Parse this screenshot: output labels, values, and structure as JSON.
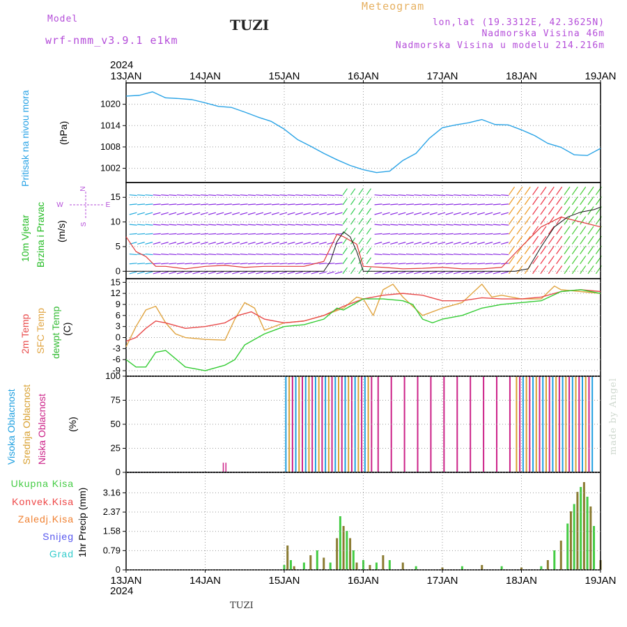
{
  "header": {
    "model_label": "Model",
    "model_name": "wrf-nmm_v3.9.1 e1km",
    "station": "TUZI",
    "meteogram": "Meteogram",
    "lonlat": "lon,lat (19.3312E, 42.3625N)",
    "elevation": "Nadmorska Visina 46m",
    "model_elevation": "Nadmorska Visina u modelu 214.216m"
  },
  "footer": {
    "station": "TUZI",
    "year_top": "2024",
    "year_bottom": "2024"
  },
  "watermark": "made by Angel",
  "colors": {
    "pressure": "#29a3e6",
    "wind_speed": "#e03a3a",
    "wind_gust": "#111111",
    "temp_2m": "#e84a4a",
    "temp_sfc": "#e0a440",
    "dewpoint": "#33cc33",
    "cloud_high": "#1fa0e0",
    "cloud_mid": "#d8a030",
    "cloud_low": "#cc2288",
    "precip_total": "#44cc44",
    "precip_conv": "#ee4444",
    "precip_frozen": "#f08030",
    "snow": "#5555ee",
    "grad": "#33cccc",
    "wind_calm": "#8a2be2"
  },
  "days": [
    "13JAN",
    "14JAN",
    "15JAN",
    "16JAN",
    "17JAN",
    "18JAN",
    "19JAN"
  ],
  "panels": {
    "pressure": {
      "label": "Pritisak na nivou mora",
      "unit": "(hPa)"
    },
    "wind": {
      "label1": "10m Vjetar",
      "label2": "Brzina i Pravac",
      "unit": "(m/s)",
      "compass": {
        "n": "N",
        "s": "S",
        "e": "E",
        "w": "W"
      }
    },
    "temp": {
      "label1": "2m Temp",
      "label2": "SFC Temp",
      "label3": "dewpt Temp",
      "unit": "(C)"
    },
    "cloud": {
      "label1": "Visoka Oblacnost",
      "label2": "Srednja Oblacnost",
      "label3": "Niska Oblacnost",
      "unit": "(%)"
    },
    "precip": {
      "unit": "1hr Precip (mm)",
      "legend": [
        "Ukupna Kisa",
        "Konvek.Kisa",
        "Zaledj.Kisa",
        "Snijeg",
        "Grad"
      ]
    }
  },
  "chart_data": [
    {
      "type": "line",
      "name": "pressure",
      "ylim": [
        998,
        1026
      ],
      "yticks": [
        "1002",
        "1008",
        "1014",
        "1020"
      ],
      "x": [
        0,
        4,
        8,
        12,
        16,
        20,
        24,
        28,
        32,
        36,
        40,
        44,
        48,
        52,
        56,
        60,
        64,
        68,
        72,
        76,
        80,
        84,
        88,
        92,
        96,
        100,
        104,
        108,
        112,
        116,
        120,
        124,
        128,
        132,
        136,
        140,
        144
      ],
      "y": [
        1022.3,
        1022.5,
        1023.5,
        1021.8,
        1021.6,
        1021.3,
        1020.4,
        1019.4,
        1019.1,
        1017.8,
        1016.4,
        1015.2,
        1013.0,
        1010.1,
        1008.2,
        1006.2,
        1004.4,
        1002.8,
        1001.6,
        1000.8,
        1001.2,
        1004.2,
        1006.2,
        1010.4,
        1013.4,
        1014.2,
        1014.8,
        1015.7,
        1014.3,
        1014.2,
        1012.8,
        1011.2,
        1009.0,
        1007.9,
        1005.8,
        1005.6,
        1007.6
      ]
    },
    {
      "type": "line",
      "name": "wind",
      "ylim": [
        -1.5,
        18
      ],
      "yticks": [
        "0",
        "5",
        "10",
        "15"
      ],
      "series": [
        {
          "name": "speed",
          "x": [
            0,
            3,
            6,
            9,
            12,
            18,
            24,
            30,
            36,
            42,
            48,
            54,
            60,
            64,
            66,
            70,
            72,
            78,
            84,
            90,
            96,
            102,
            108,
            114,
            120,
            126,
            132,
            138,
            144
          ],
          "y": [
            7,
            4,
            3,
            1,
            1,
            0.5,
            1,
            1.2,
            0.8,
            1,
            1,
            1,
            2,
            7.5,
            7,
            5.5,
            1,
            0.8,
            0.5,
            0.6,
            0.8,
            0.5,
            0.5,
            0.8,
            5,
            9,
            11,
            10,
            9
          ]
        },
        {
          "name": "gust",
          "x": [
            0,
            12,
            24,
            36,
            48,
            60,
            62,
            64,
            66,
            68,
            70,
            72,
            84,
            96,
            108,
            114,
            118,
            122,
            126,
            130,
            134,
            138,
            142,
            144
          ],
          "y": [
            0,
            0,
            0,
            0,
            0,
            0,
            2,
            6,
            8,
            7,
            4,
            0,
            0,
            0,
            0,
            0,
            0,
            0.5,
            5,
            9,
            11,
            12,
            12.5,
            13
          ]
        }
      ]
    },
    {
      "type": "line",
      "name": "temperature",
      "ylim": [
        -10.5,
        16
      ],
      "yticks": [
        "-9",
        "-6",
        "-3",
        "0",
        "3",
        "6",
        "9",
        "12",
        "15"
      ],
      "series": [
        {
          "name": "t2m",
          "x": [
            0,
            3,
            6,
            9,
            12,
            18,
            24,
            30,
            34,
            38,
            42,
            48,
            54,
            60,
            66,
            72,
            78,
            84,
            90,
            96,
            102,
            108,
            114,
            120,
            126,
            132,
            138,
            144
          ],
          "y": [
            -1,
            0,
            2.5,
            4.5,
            4,
            2.5,
            3,
            4,
            6,
            7,
            5,
            4,
            4.5,
            6,
            8.5,
            10.5,
            11.5,
            12,
            11.5,
            10,
            10,
            10.8,
            10.5,
            10.5,
            11,
            12.5,
            13,
            12.5
          ]
        },
        {
          "name": "tsfc",
          "x": [
            0,
            3,
            6,
            9,
            12,
            15,
            18,
            24,
            30,
            33,
            36,
            39,
            42,
            48,
            54,
            60,
            66,
            70,
            72,
            75,
            78,
            81,
            84,
            87,
            90,
            96,
            102,
            108,
            111,
            114,
            120,
            126,
            130,
            132,
            138,
            144
          ],
          "y": [
            -2.5,
            3,
            7.5,
            8.5,
            4,
            1,
            0,
            -0.5,
            -0.7,
            5,
            9.5,
            8,
            2,
            4,
            4.5,
            6,
            8,
            11,
            10.5,
            6,
            13,
            14.5,
            11,
            8.5,
            6,
            8,
            9.5,
            14.5,
            11,
            11.5,
            10.5,
            10.5,
            14,
            13,
            12.5,
            12
          ]
        },
        {
          "name": "dewpt",
          "x": [
            0,
            3,
            6,
            9,
            12,
            18,
            24,
            30,
            33,
            36,
            39,
            42,
            48,
            54,
            60,
            64,
            66,
            72,
            76,
            78,
            84,
            87,
            90,
            93,
            96,
            102,
            108,
            114,
            120,
            126,
            132,
            138,
            144
          ],
          "y": [
            -6,
            -8,
            -8,
            -4,
            -3.5,
            -8,
            -9,
            -7.5,
            -6,
            -2,
            -0.5,
            1,
            3,
            3.5,
            5,
            8,
            7.5,
            10.5,
            10.5,
            10.5,
            10,
            9,
            5,
            4,
            5,
            6,
            8,
            9,
            9.5,
            10,
            12.5,
            13,
            12
          ]
        }
      ]
    },
    {
      "type": "bar",
      "name": "cloud_cover",
      "ylim": [
        0,
        100
      ],
      "yticks": [
        "0",
        "25",
        "50",
        "75",
        "100"
      ],
      "note": "low/mid/high cloud cover %, near 100 from 15JAN to 17JAN and again late 17JAN to 19JAN"
    },
    {
      "type": "bar",
      "name": "precipitation",
      "ylim": [
        0,
        4
      ],
      "yticks": [
        "0",
        "0.79",
        "1.58",
        "2.37",
        "3.16"
      ],
      "x": [
        48,
        49,
        50,
        51,
        54,
        56,
        58,
        60,
        62,
        64,
        65,
        66,
        67,
        68,
        69,
        70,
        72,
        74,
        76,
        78,
        80,
        84,
        88,
        96,
        102,
        108,
        114,
        120,
        126,
        128,
        130,
        132,
        134,
        135,
        136,
        137,
        138,
        139,
        140,
        141,
        142,
        144
      ],
      "y": [
        0.2,
        1.0,
        0.4,
        0.15,
        0.3,
        0.6,
        0.8,
        0.5,
        0.3,
        1.3,
        2.2,
        1.8,
        1.6,
        1.3,
        0.8,
        0.3,
        0.4,
        0.2,
        0.3,
        0.6,
        0.4,
        0.3,
        0.15,
        0.1,
        0.15,
        0.2,
        0.15,
        0.1,
        0.15,
        0.4,
        0.8,
        1.2,
        1.9,
        2.4,
        2.7,
        3.2,
        3.4,
        3.6,
        3.0,
        2.6,
        1.8,
        0.4
      ]
    }
  ]
}
